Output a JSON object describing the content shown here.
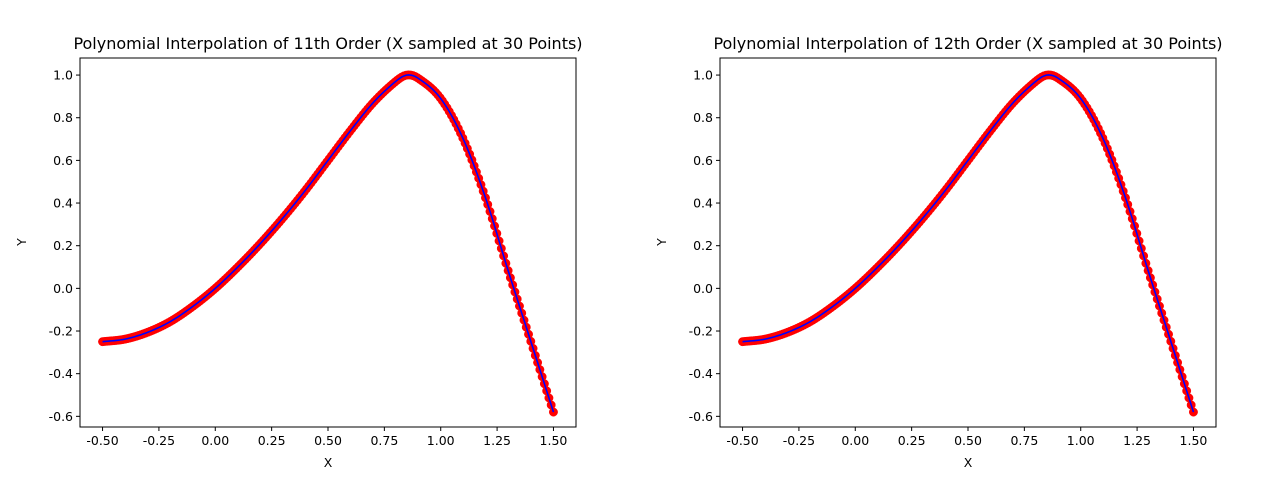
{
  "chart_data": [
    {
      "type": "scatter",
      "title": "Polynomial Interpolation of 11th Order (X sampled at 30 Points)",
      "xlabel": "X",
      "ylabel": "Y",
      "xlim": [
        -0.6,
        1.6
      ],
      "ylim": [
        -0.65,
        1.08
      ],
      "xticks": [
        "-0.50",
        "-0.25",
        "0.00",
        "0.25",
        "0.50",
        "0.75",
        "1.00",
        "1.25",
        "1.50"
      ],
      "yticks": [
        "-0.6",
        "-0.4",
        "-0.2",
        "0.0",
        "0.2",
        "0.4",
        "0.6",
        "0.8",
        "1.0"
      ],
      "grid": false,
      "x_range": [
        -0.5,
        1.5
      ],
      "n_points": 200,
      "curve_knots": {
        "x": [
          -0.5,
          -0.4,
          -0.3,
          -0.2,
          -0.1,
          0.0,
          0.1,
          0.2,
          0.3,
          0.4,
          0.5,
          0.6,
          0.7,
          0.8,
          0.85,
          0.9,
          1.0,
          1.1,
          1.2,
          1.3,
          1.4,
          1.5
        ],
        "y": [
          -0.25,
          -0.238,
          -0.206,
          -0.156,
          -0.085,
          0.0,
          0.1,
          0.21,
          0.33,
          0.46,
          0.6,
          0.74,
          0.87,
          0.97,
          1.0,
          0.985,
          0.89,
          0.7,
          0.42,
          0.08,
          -0.25,
          -0.58
        ]
      },
      "series": [
        {
          "type": "scatter",
          "color": "#ff0000"
        },
        {
          "type": "line",
          "color": "#0000ff"
        }
      ]
    },
    {
      "type": "scatter",
      "title": "Polynomial Interpolation of 12th Order (X sampled at 30 Points)",
      "xlabel": "X",
      "ylabel": "Y",
      "xlim": [
        -0.6,
        1.6
      ],
      "ylim": [
        -0.65,
        1.08
      ],
      "xticks": [
        "-0.50",
        "-0.25",
        "0.00",
        "0.25",
        "0.50",
        "0.75",
        "1.00",
        "1.25",
        "1.50"
      ],
      "yticks": [
        "-0.6",
        "-0.4",
        "-0.2",
        "0.0",
        "0.2",
        "0.4",
        "0.6",
        "0.8",
        "1.0"
      ],
      "grid": false,
      "x_range": [
        -0.5,
        1.5
      ],
      "n_points": 200,
      "curve_knots": {
        "x": [
          -0.5,
          -0.4,
          -0.3,
          -0.2,
          -0.1,
          0.0,
          0.1,
          0.2,
          0.3,
          0.4,
          0.5,
          0.6,
          0.7,
          0.8,
          0.85,
          0.9,
          1.0,
          1.1,
          1.2,
          1.3,
          1.4,
          1.5
        ],
        "y": [
          -0.25,
          -0.238,
          -0.206,
          -0.156,
          -0.085,
          0.0,
          0.1,
          0.21,
          0.33,
          0.46,
          0.6,
          0.74,
          0.87,
          0.97,
          1.0,
          0.985,
          0.89,
          0.7,
          0.42,
          0.08,
          -0.25,
          -0.58
        ]
      },
      "series": [
        {
          "type": "scatter",
          "color": "#ff0000"
        },
        {
          "type": "line",
          "color": "#0000ff"
        }
      ]
    }
  ]
}
